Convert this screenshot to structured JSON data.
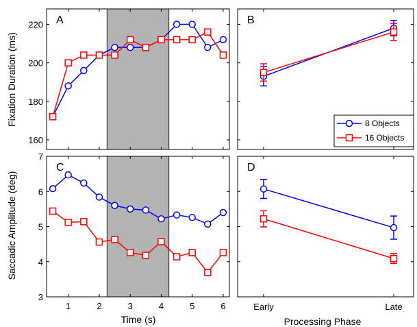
{
  "colors": {
    "blue": "#0000ff",
    "red": "#ff0000",
    "shade": "#b3b3b3"
  },
  "legend": {
    "entries": [
      {
        "label": "8 Objects",
        "color": "#0000ff",
        "marker": "circle"
      },
      {
        "label": "16 Objects",
        "color": "#ff0000",
        "marker": "square"
      }
    ],
    "placement": "bottom-right of panel B"
  },
  "chart_data": [
    {
      "id": "A",
      "type": "line",
      "panel_label": "A",
      "ylabel": "Fixation Duration (ms)",
      "xlabel": "",
      "xlim": [
        0.3,
        6.2
      ],
      "ylim": [
        155,
        228
      ],
      "xticks": [
        1,
        2,
        3,
        4,
        5,
        6
      ],
      "yticks": [
        160,
        180,
        200,
        220
      ],
      "shaded_x": [
        2.25,
        4.25
      ],
      "series": [
        {
          "name": "8 Objects",
          "color": "#0000ff",
          "marker": "circle",
          "x": [
            0.5,
            1,
            1.5,
            2,
            2.5,
            3,
            3.5,
            4,
            4.5,
            5,
            5.5,
            6
          ],
          "y": [
            172,
            188,
            196,
            204,
            208,
            208,
            208,
            212,
            220,
            220,
            208,
            212
          ]
        },
        {
          "name": "16 Objects",
          "color": "#ff0000",
          "marker": "square",
          "x": [
            0.5,
            1,
            1.5,
            2,
            2.5,
            3,
            3.5,
            4,
            4.5,
            5,
            5.5,
            6
          ],
          "y": [
            172,
            200,
            204,
            204,
            204,
            212,
            208,
            212,
            212,
            212,
            216,
            204
          ]
        }
      ]
    },
    {
      "id": "B",
      "type": "line",
      "panel_label": "B",
      "ylabel": "",
      "xlabel": "",
      "categories": [
        "Early",
        "Late"
      ],
      "ylim": [
        155,
        228
      ],
      "yticks": [
        160,
        180,
        200,
        220
      ],
      "series": [
        {
          "name": "8 Objects",
          "color": "#0000ff",
          "marker": "circle",
          "values": [
            193,
            218
          ],
          "errors": [
            5,
            4
          ]
        },
        {
          "name": "16 Objects",
          "color": "#ff0000",
          "marker": "square",
          "values": [
            195,
            216
          ],
          "errors": [
            4.5,
            4.5
          ]
        }
      ]
    },
    {
      "id": "C",
      "type": "line",
      "panel_label": "C",
      "ylabel": "Saccadic Amplitude (deg)",
      "xlabel": "Time (s)",
      "xlim": [
        0.3,
        6.2
      ],
      "ylim": [
        3,
        7
      ],
      "xticks": [
        1,
        2,
        3,
        4,
        5,
        6
      ],
      "yticks": [
        3,
        4,
        5,
        6,
        7
      ],
      "shaded_x": [
        2.25,
        4.25
      ],
      "series": [
        {
          "name": "8 Objects",
          "color": "#0000ff",
          "marker": "circle",
          "x": [
            0.5,
            1,
            1.5,
            2,
            2.5,
            3,
            3.5,
            4,
            4.5,
            5,
            5.5,
            6
          ],
          "y": [
            6.08,
            6.47,
            6.24,
            5.84,
            5.6,
            5.5,
            5.47,
            5.22,
            5.33,
            5.26,
            5.07,
            5.4
          ]
        },
        {
          "name": "16 Objects",
          "color": "#ff0000",
          "marker": "square",
          "x": [
            0.5,
            1,
            1.5,
            2,
            2.5,
            3,
            3.5,
            4,
            4.5,
            5,
            5.5,
            6
          ],
          "y": [
            5.44,
            5.12,
            5.14,
            4.56,
            4.63,
            4.26,
            4.18,
            4.57,
            4.14,
            4.26,
            3.69,
            4.26
          ]
        }
      ]
    },
    {
      "id": "D",
      "type": "line",
      "panel_label": "D",
      "ylabel": "",
      "xlabel": "Processing Phase",
      "categories": [
        "Early",
        "Late"
      ],
      "ylim": [
        3,
        7
      ],
      "yticks": [
        3,
        4,
        5,
        6,
        7
      ],
      "series": [
        {
          "name": "8 Objects",
          "color": "#0000ff",
          "marker": "circle",
          "values": [
            6.07,
            4.97
          ],
          "errors": [
            0.27,
            0.33
          ]
        },
        {
          "name": "16 Objects",
          "color": "#ff0000",
          "marker": "square",
          "values": [
            5.22,
            4.09
          ],
          "errors": [
            0.23,
            0.14
          ]
        }
      ]
    }
  ]
}
